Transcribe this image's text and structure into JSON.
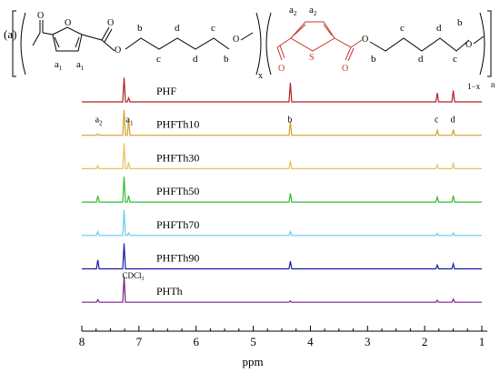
{
  "panel_label": "(a)",
  "structure": {
    "furan_o_label": "O",
    "ester_o_label": "O",
    "labels_a1": [
      "a",
      "a"
    ],
    "a1_sub": "1",
    "a2_sub": "2",
    "chain_letters_left": [
      "b",
      "c",
      "d",
      "d",
      "c",
      "b"
    ],
    "chain_letters_right": [
      "b",
      "c",
      "d",
      "d",
      "c",
      "b"
    ],
    "ether_o_left": "O",
    "ether_o_right": "O",
    "thio_s_label": "S",
    "thio_labels_a2": [
      "a",
      "a"
    ],
    "subscript_x": "x",
    "subscript_1mx": "1−x",
    "subscript_n": "n",
    "colors": {
      "furan": "#000000",
      "thiophene": "#c0392b"
    }
  },
  "chart_data": {
    "type": "line",
    "title": "",
    "xlabel": "ppm",
    "ylabel": "",
    "xlim": [
      8.0,
      1.0
    ],
    "x_reversed": true,
    "x_ticks": [
      8,
      7,
      6,
      5,
      4,
      3,
      2,
      1
    ],
    "x_tick_labels": [
      "8",
      "7",
      "6",
      "5",
      "4",
      "3",
      "2",
      "1"
    ],
    "grid": false,
    "solvent_label": "CDCl",
    "solvent_sub": "3",
    "solvent_shift": 7.26,
    "series": [
      {
        "name": "PHF",
        "color": "#b22222",
        "peaks": [
          {
            "ppm": 7.26,
            "h": 0.95
          },
          {
            "ppm": 7.18,
            "h": 0.15
          },
          {
            "ppm": 4.35,
            "h": 0.75
          },
          {
            "ppm": 1.78,
            "h": 0.35
          },
          {
            "ppm": 1.5,
            "h": 0.45
          }
        ]
      },
      {
        "name": "PHFTh10",
        "color": "#d4a02a",
        "peaks": [
          {
            "ppm": 7.72,
            "h": 0.05
          },
          {
            "ppm": 7.26,
            "h": 1.0
          },
          {
            "ppm": 7.18,
            "h": 0.6
          },
          {
            "ppm": 4.35,
            "h": 0.55
          },
          {
            "ppm": 1.78,
            "h": 0.2
          },
          {
            "ppm": 1.5,
            "h": 0.22
          }
        ],
        "peak_labels": [
          {
            "ppm": 7.72,
            "text": "a",
            "sub": "2"
          },
          {
            "ppm": 7.18,
            "text": "a",
            "sub": "1"
          },
          {
            "ppm": 4.35,
            "text": "b"
          },
          {
            "ppm": 1.78,
            "text": "c"
          },
          {
            "ppm": 1.5,
            "text": "d"
          }
        ]
      },
      {
        "name": "PHFTh30",
        "color": "#e6c25a",
        "peaks": [
          {
            "ppm": 7.72,
            "h": 0.12
          },
          {
            "ppm": 7.26,
            "h": 1.0
          },
          {
            "ppm": 7.18,
            "h": 0.25
          },
          {
            "ppm": 4.35,
            "h": 0.3
          },
          {
            "ppm": 1.78,
            "h": 0.15
          },
          {
            "ppm": 1.5,
            "h": 0.2
          }
        ]
      },
      {
        "name": "PHFTh50",
        "color": "#33bb33",
        "peaks": [
          {
            "ppm": 7.72,
            "h": 0.25
          },
          {
            "ppm": 7.26,
            "h": 1.0
          },
          {
            "ppm": 7.18,
            "h": 0.25
          },
          {
            "ppm": 4.35,
            "h": 0.35
          },
          {
            "ppm": 1.78,
            "h": 0.2
          },
          {
            "ppm": 1.5,
            "h": 0.25
          }
        ]
      },
      {
        "name": "PHFTh70",
        "color": "#66ccee",
        "peaks": [
          {
            "ppm": 7.72,
            "h": 0.15
          },
          {
            "ppm": 7.26,
            "h": 1.0
          },
          {
            "ppm": 7.18,
            "h": 0.1
          },
          {
            "ppm": 4.35,
            "h": 0.15
          },
          {
            "ppm": 1.78,
            "h": 0.08
          },
          {
            "ppm": 1.5,
            "h": 0.1
          }
        ]
      },
      {
        "name": "PHFTh90",
        "color": "#1a1aa6",
        "peaks": [
          {
            "ppm": 7.72,
            "h": 0.35
          },
          {
            "ppm": 7.26,
            "h": 1.0
          },
          {
            "ppm": 4.35,
            "h": 0.3
          },
          {
            "ppm": 1.78,
            "h": 0.15
          },
          {
            "ppm": 1.5,
            "h": 0.2
          }
        ]
      },
      {
        "name": "PHTh",
        "color": "#7a1f8a",
        "peaks": [
          {
            "ppm": 7.72,
            "h": 0.1
          },
          {
            "ppm": 7.26,
            "h": 1.0
          },
          {
            "ppm": 4.35,
            "h": 0.05
          },
          {
            "ppm": 1.78,
            "h": 0.08
          },
          {
            "ppm": 1.5,
            "h": 0.12
          }
        ]
      }
    ]
  }
}
